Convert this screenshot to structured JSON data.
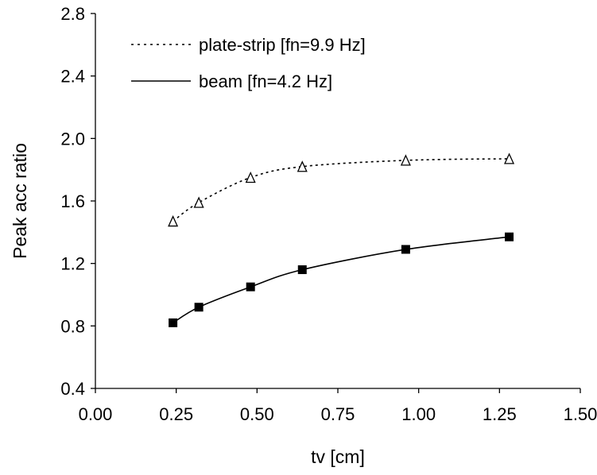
{
  "chart_data": {
    "type": "line",
    "title": "",
    "xlabel": "tv [cm]",
    "ylabel": "Peak acc ratio",
    "xlim": [
      0.0,
      1.5
    ],
    "ylim": [
      0.4,
      2.8
    ],
    "x_ticks": [
      "0.00",
      "0.25",
      "0.50",
      "0.75",
      "1.00",
      "1.25",
      "1.50"
    ],
    "y_ticks": [
      "0.4",
      "0.8",
      "1.2",
      "1.6",
      "2.0",
      "2.4",
      "2.8"
    ],
    "grid": false,
    "legend_position": "top-left",
    "series": [
      {
        "name": "plate-strip [fn=9.9 Hz]",
        "line_style": "dotted",
        "marker": "open-triangle",
        "color": "#000000",
        "x": [
          0.24,
          0.32,
          0.48,
          0.64,
          0.96,
          1.28
        ],
        "y": [
          1.47,
          1.59,
          1.75,
          1.82,
          1.86,
          1.87
        ]
      },
      {
        "name": "beam [fn=4.2 Hz]",
        "line_style": "solid",
        "marker": "filled-square",
        "color": "#000000",
        "x": [
          0.24,
          0.32,
          0.48,
          0.64,
          0.96,
          1.28
        ],
        "y": [
          0.82,
          0.92,
          1.05,
          1.16,
          1.29,
          1.37
        ]
      }
    ]
  }
}
